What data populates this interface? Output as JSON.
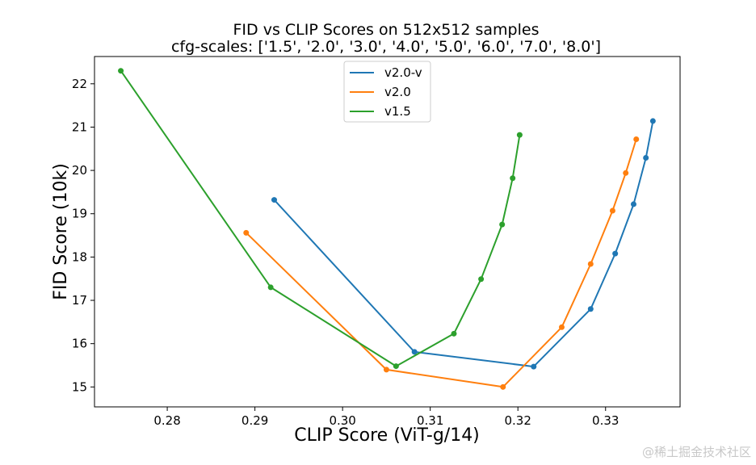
{
  "chart_data": {
    "type": "line",
    "title": "FID vs CLIP Scores on 512x512 samples",
    "subtitle": "cfg-scales: ['1.5', '2.0', '3.0', '4.0', '5.0', '6.0', '7.0', '8.0']",
    "xlabel": "CLIP Score (ViT-g/14)",
    "ylabel": "FID Score (10k)",
    "xlim": [
      0.2717,
      0.3385
    ],
    "ylim": [
      14.54,
      22.63
    ],
    "xticks": [
      0.28,
      0.29,
      0.3,
      0.31,
      0.32,
      0.33
    ],
    "xtick_labels": [
      "0.28",
      "0.29",
      "0.30",
      "0.31",
      "0.32",
      "0.33"
    ],
    "yticks": [
      15,
      16,
      17,
      18,
      19,
      20,
      21,
      22
    ],
    "ytick_labels": [
      "15",
      "16",
      "17",
      "18",
      "19",
      "20",
      "21",
      "22"
    ],
    "grid": false,
    "legend_position": "upper-center",
    "series": [
      {
        "name": "v2.0-v",
        "color": "#1f77b4",
        "x": [
          0.2922,
          0.3082,
          0.3218,
          0.3283,
          0.3311,
          0.3332,
          0.3346,
          0.3354
        ],
        "y": [
          19.32,
          15.81,
          15.47,
          16.8,
          18.08,
          19.22,
          20.29,
          21.14
        ]
      },
      {
        "name": "v2.0",
        "color": "#ff7f0e",
        "x": [
          0.289,
          0.305,
          0.3183,
          0.325,
          0.3283,
          0.3308,
          0.3323,
          0.3335
        ],
        "y": [
          18.56,
          15.4,
          15.0,
          16.38,
          17.84,
          19.07,
          19.94,
          20.72
        ]
      },
      {
        "name": "v1.5",
        "color": "#2ca02c",
        "x": [
          0.2747,
          0.2918,
          0.3061,
          0.3127,
          0.3158,
          0.3182,
          0.3194,
          0.3202
        ],
        "y": [
          22.3,
          17.3,
          15.48,
          16.23,
          17.49,
          18.75,
          19.82,
          20.82
        ]
      }
    ]
  },
  "watermark": "@稀土掘金技术社区"
}
